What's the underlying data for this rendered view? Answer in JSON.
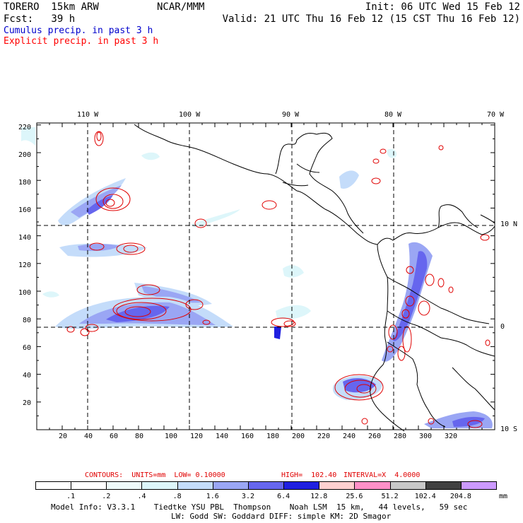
{
  "header": {
    "left_line1": "TORERO  15km ARW",
    "left_line2": "Fcst:   39 h",
    "center": "NCAR/MMM",
    "right_line1": "Init: 06 UTC Wed 15 Feb 12",
    "right_line2": "Valid: 21 UTC Thu 16 Feb 12 (15 CST Thu 16 Feb 12)"
  },
  "titles": {
    "cumulus": "Cumulus precip. in past 3 h",
    "explicit": "Explicit precip. in past 3 h"
  },
  "colors": {
    "cumulus_title": "#0000cc",
    "explicit_title": "#ff0000",
    "contour": "#e00000",
    "coast": "#000000"
  },
  "map": {
    "top_labels": [
      "110 W",
      "100 W",
      "90 W",
      "80 W",
      "70 W"
    ],
    "right_labels": [
      "10 N",
      "0",
      "10 S"
    ],
    "y_ticks": [
      "220",
      "200",
      "180",
      "160",
      "140",
      "120",
      "100",
      "80",
      "60",
      "40",
      "20"
    ],
    "x_ticks": [
      "20",
      "40",
      "60",
      "80",
      "100",
      "120",
      "140",
      "160",
      "180",
      "200",
      "220",
      "240",
      "260",
      "280",
      "300",
      "320"
    ]
  },
  "legend": {
    "contours_label": "CONTOURS:  UNITS=mm  LOW= 0.10000",
    "high_label": "HIGH=  102.40",
    "interval_label": "INTERVAL=X  4.0000",
    "values": [
      ".1",
      ".2",
      ".4",
      ".8",
      "1.6",
      "3.2",
      "6.4",
      "12.8",
      "25.6",
      "51.2",
      "102.4",
      "204.8"
    ],
    "unit": "mm",
    "bin_colors": [
      "#ffffff",
      "#ffffff",
      "#eefafa",
      "#ddf6fa",
      "#c4dcfa",
      "#9aa6f4",
      "#6666ee",
      "#1f1fe0",
      "#ffd0d0",
      "#ff90c8",
      "#c8c8c8",
      "#404040",
      "#cc99ff"
    ]
  },
  "footer": {
    "line1": "Model Info: V3.3.1    Tiedtke YSU PBL  Thompson    Noah LSM  15 km,   44 levels,   59 sec",
    "line2": "LW: Godd SW: Goddard DIFF: simple KM: 2D Smagor"
  }
}
